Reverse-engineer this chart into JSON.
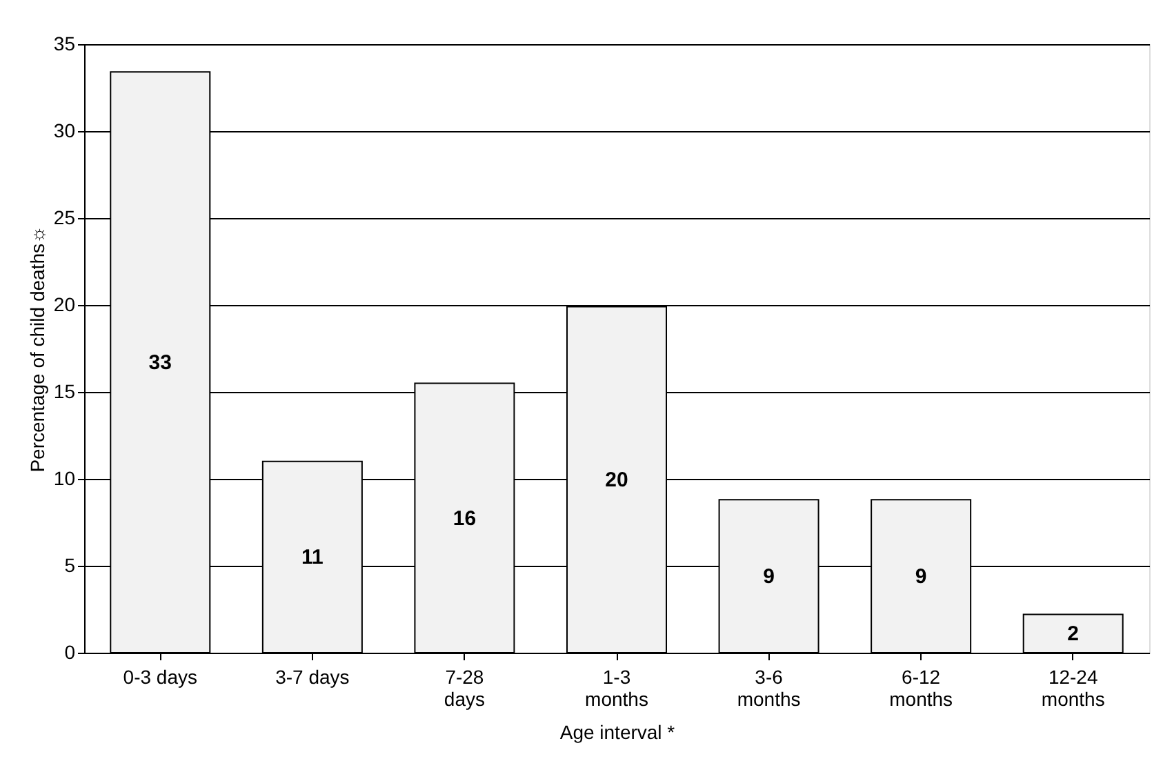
{
  "chart_data": {
    "type": "bar",
    "xlabel": "Age interval *",
    "ylabel": "Percentage of child deaths☼",
    "categories": [
      "0-3 days",
      "3-7 days",
      "7-28 days",
      "1-3 months",
      "3-6 months",
      "6-12 months",
      "12-24 months"
    ],
    "values": [
      33.4,
      11,
      15.5,
      19.9,
      8.8,
      8.8,
      2.2
    ],
    "value_labels": [
      "33",
      "11",
      "16",
      "20",
      "9",
      "9",
      "2"
    ],
    "color": "#f2f2f2",
    "ylim": [
      0,
      35
    ],
    "yticks": [
      0,
      5,
      10,
      15,
      20,
      25,
      30,
      35
    ],
    "grid": "y"
  }
}
